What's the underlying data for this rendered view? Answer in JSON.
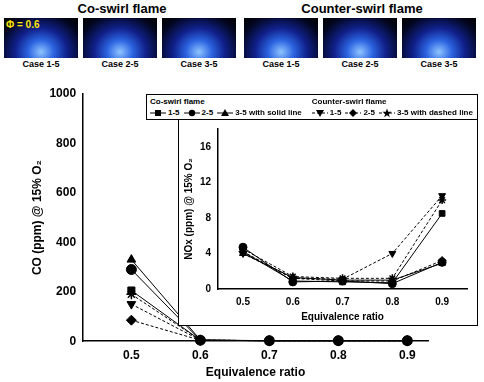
{
  "photos": {
    "groups": [
      {
        "title": "Co-swirl flame",
        "label": "Φ = 0.6",
        "cases": [
          "Case 1-5",
          "Case 2-5",
          "Case 3-5"
        ]
      },
      {
        "title": "Counter-swirl flame",
        "cases": [
          "Case 1-5",
          "Case 2-5",
          "Case 3-5"
        ]
      }
    ]
  },
  "chart_data": [
    {
      "type": "line",
      "x_label": "Equivalence ratio",
      "y_label": "CO (ppm) @ 15% O₂",
      "x": [
        0.5,
        0.6,
        0.7,
        0.8,
        0.9
      ],
      "xlim": [
        0.43,
        0.93
      ],
      "xticks": [
        0.5,
        0.6,
        0.7,
        0.8,
        0.9
      ],
      "ylim": [
        0,
        1000
      ],
      "yticks": [
        0,
        200,
        400,
        600,
        800,
        1000
      ],
      "grid": false,
      "legend": "top",
      "series": [
        {
          "name": "1-5",
          "group": "Co-swirl flame",
          "color": "#000000",
          "marker": "square",
          "line_style": "solid",
          "values": [
            205,
            4,
            2,
            2,
            2
          ]
        },
        {
          "name": "2-5",
          "group": "Co-swirl flame",
          "color": "#000000",
          "marker": "circle",
          "line_style": "solid",
          "values": [
            290,
            4,
            2,
            2,
            2
          ]
        },
        {
          "name": "3-5 with solid line",
          "group": "Co-swirl flame",
          "color": "#000000",
          "marker": "triangle",
          "line_style": "solid",
          "values": [
            330,
            5,
            2,
            2,
            2
          ]
        },
        {
          "name": "1-5",
          "group": "Counter-swirl flame",
          "color": "#000000",
          "marker": "triangle_down",
          "line_style": "dashed",
          "values": [
            150,
            4,
            2,
            2,
            2
          ]
        },
        {
          "name": "2-5",
          "group": "Counter-swirl flame",
          "color": "#000000",
          "marker": "diamond",
          "line_style": "dashed",
          "values": [
            85,
            4,
            2,
            2,
            2
          ]
        },
        {
          "name": "3-5 with dashed line",
          "group": "Counter-swirl flame",
          "color": "#000000",
          "marker": "star",
          "line_style": "dashed",
          "values": [
            190,
            4,
            2,
            2,
            2
          ]
        }
      ]
    },
    {
      "type": "line",
      "x_label": "Equivalence ratio",
      "y_label": "NOx (ppm) @ 15% O₂",
      "x": [
        0.5,
        0.6,
        0.7,
        0.8,
        0.9
      ],
      "xlim": [
        0.45,
        0.95
      ],
      "xticks": [
        0.5,
        0.6,
        0.7,
        0.8,
        0.9
      ],
      "ylim": [
        0,
        18
      ],
      "yticks": [
        0,
        4,
        8,
        12,
        16
      ],
      "grid": false,
      "series": [
        {
          "name": "1-5",
          "group": "Co-swirl flame",
          "color": "#000000",
          "marker": "square",
          "line_style": "solid",
          "values": [
            4.2,
            0.9,
            0.8,
            0.7,
            8.5
          ]
        },
        {
          "name": "2-5",
          "group": "Co-swirl flame",
          "color": "#000000",
          "marker": "circle",
          "line_style": "solid",
          "values": [
            4.7,
            0.8,
            0.9,
            0.6,
            3.0
          ]
        },
        {
          "name": "3-5 with solid line",
          "group": "Co-swirl flame",
          "color": "#000000",
          "marker": "triangle",
          "line_style": "solid",
          "values": [
            4.0,
            1.3,
            1.0,
            1.0,
            2.9
          ]
        },
        {
          "name": "1-5",
          "group": "Counter-swirl flame",
          "color": "#000000",
          "marker": "triangle_down",
          "line_style": "dashed",
          "values": [
            4.0,
            1.2,
            1.1,
            4.0,
            10.5
          ]
        },
        {
          "name": "2-5",
          "group": "Counter-swirl flame",
          "color": "#000000",
          "marker": "diamond",
          "line_style": "dashed",
          "values": [
            4.2,
            1.2,
            0.9,
            0.9,
            3.2
          ]
        },
        {
          "name": "3-5 with dashed line",
          "group": "Counter-swirl flame",
          "color": "#000000",
          "marker": "star",
          "line_style": "dashed",
          "values": [
            4.5,
            1.4,
            1.2,
            1.2,
            10.0
          ]
        }
      ]
    }
  ]
}
